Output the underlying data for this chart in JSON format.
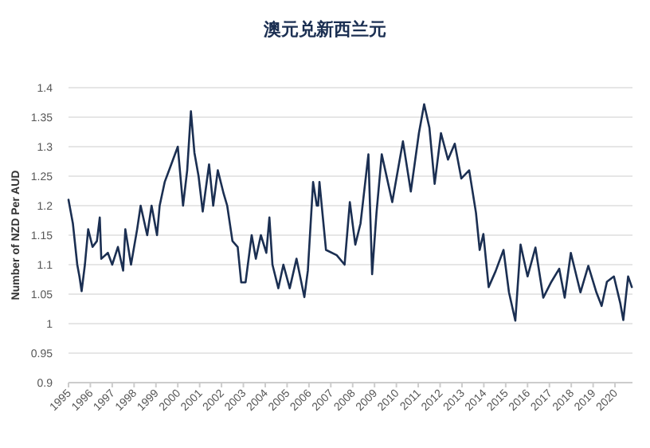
{
  "chart_data": {
    "type": "line",
    "title": "澳元兑新西兰元",
    "ylabel": "Number of NZD Per AUD",
    "xlim": [
      1995,
      2020.8
    ],
    "xticks": [
      1995,
      1996,
      1997,
      1998,
      1999,
      2000,
      2001,
      2002,
      2003,
      2004,
      2005,
      2006,
      2007,
      2008,
      2009,
      2010,
      2011,
      2012,
      2013,
      2014,
      2015,
      2016,
      2017,
      2018,
      2019,
      2020
    ],
    "ylim": [
      0.9,
      1.4
    ],
    "yticks": [
      0.9,
      0.95,
      1,
      1.05,
      1.1,
      1.15,
      1.2,
      1.25,
      1.3,
      1.35,
      1.4
    ],
    "grid": "y",
    "series": [
      {
        "color": "#1b2f52",
        "x": [
          1995.0,
          1995.2,
          1995.4,
          1995.5,
          1995.6,
          1995.75,
          1995.9,
          1996.1,
          1996.3,
          1996.43,
          1996.5,
          1996.8,
          1997.0,
          1997.26,
          1997.5,
          1997.6,
          1997.86,
          1998.14,
          1998.3,
          1998.6,
          1998.8,
          1999.05,
          1999.17,
          1999.4,
          1999.7,
          2000.0,
          2000.24,
          2000.43,
          2000.6,
          2000.76,
          2000.95,
          2001.14,
          2001.43,
          2001.62,
          2001.83,
          2002.1,
          2002.26,
          2002.5,
          2002.74,
          2002.9,
          2003.1,
          2003.38,
          2003.57,
          2003.8,
          2004.05,
          2004.19,
          2004.33,
          2004.6,
          2004.83,
          2005.12,
          2005.43,
          2005.79,
          2005.95,
          2006.19,
          2006.36,
          2006.42,
          2006.48,
          2006.78,
          2007.27,
          2007.63,
          2007.87,
          2008.12,
          2008.36,
          2008.72,
          2008.89,
          2009.09,
          2009.33,
          2009.81,
          2010.3,
          2010.66,
          2011.03,
          2011.27,
          2011.51,
          2011.75,
          2012.04,
          2012.36,
          2012.67,
          2012.97,
          2013.33,
          2013.64,
          2013.81,
          2013.98,
          2014.22,
          2014.54,
          2014.9,
          2015.15,
          2015.44,
          2015.68,
          2016.0,
          2016.36,
          2016.72,
          2017.09,
          2017.45,
          2017.7,
          2017.98,
          2018.42,
          2018.78,
          2019.15,
          2019.39,
          2019.63,
          2019.95,
          2020.24,
          2020.38,
          2020.6,
          2020.77
        ],
        "values": [
          1.21,
          1.17,
          1.1,
          1.08,
          1.055,
          1.1,
          1.16,
          1.13,
          1.14,
          1.18,
          1.11,
          1.12,
          1.1,
          1.13,
          1.09,
          1.16,
          1.1,
          1.16,
          1.2,
          1.15,
          1.2,
          1.15,
          1.2,
          1.24,
          1.27,
          1.3,
          1.2,
          1.26,
          1.36,
          1.29,
          1.25,
          1.19,
          1.27,
          1.2,
          1.26,
          1.22,
          1.2,
          1.14,
          1.13,
          1.07,
          1.07,
          1.15,
          1.11,
          1.15,
          1.12,
          1.18,
          1.1,
          1.06,
          1.1,
          1.06,
          1.11,
          1.045,
          1.09,
          1.24,
          1.2,
          1.2,
          1.24,
          1.125,
          1.116,
          1.1,
          1.206,
          1.134,
          1.17,
          1.287,
          1.084,
          1.188,
          1.287,
          1.206,
          1.309,
          1.224,
          1.323,
          1.372,
          1.332,
          1.237,
          1.323,
          1.278,
          1.305,
          1.246,
          1.26,
          1.188,
          1.125,
          1.152,
          1.062,
          1.089,
          1.125,
          1.053,
          1.005,
          1.134,
          1.08,
          1.129,
          1.044,
          1.071,
          1.093,
          1.044,
          1.12,
          1.053,
          1.098,
          1.053,
          1.03,
          1.071,
          1.08,
          1.035,
          1.006,
          1.08,
          1.062
        ]
      }
    ]
  }
}
